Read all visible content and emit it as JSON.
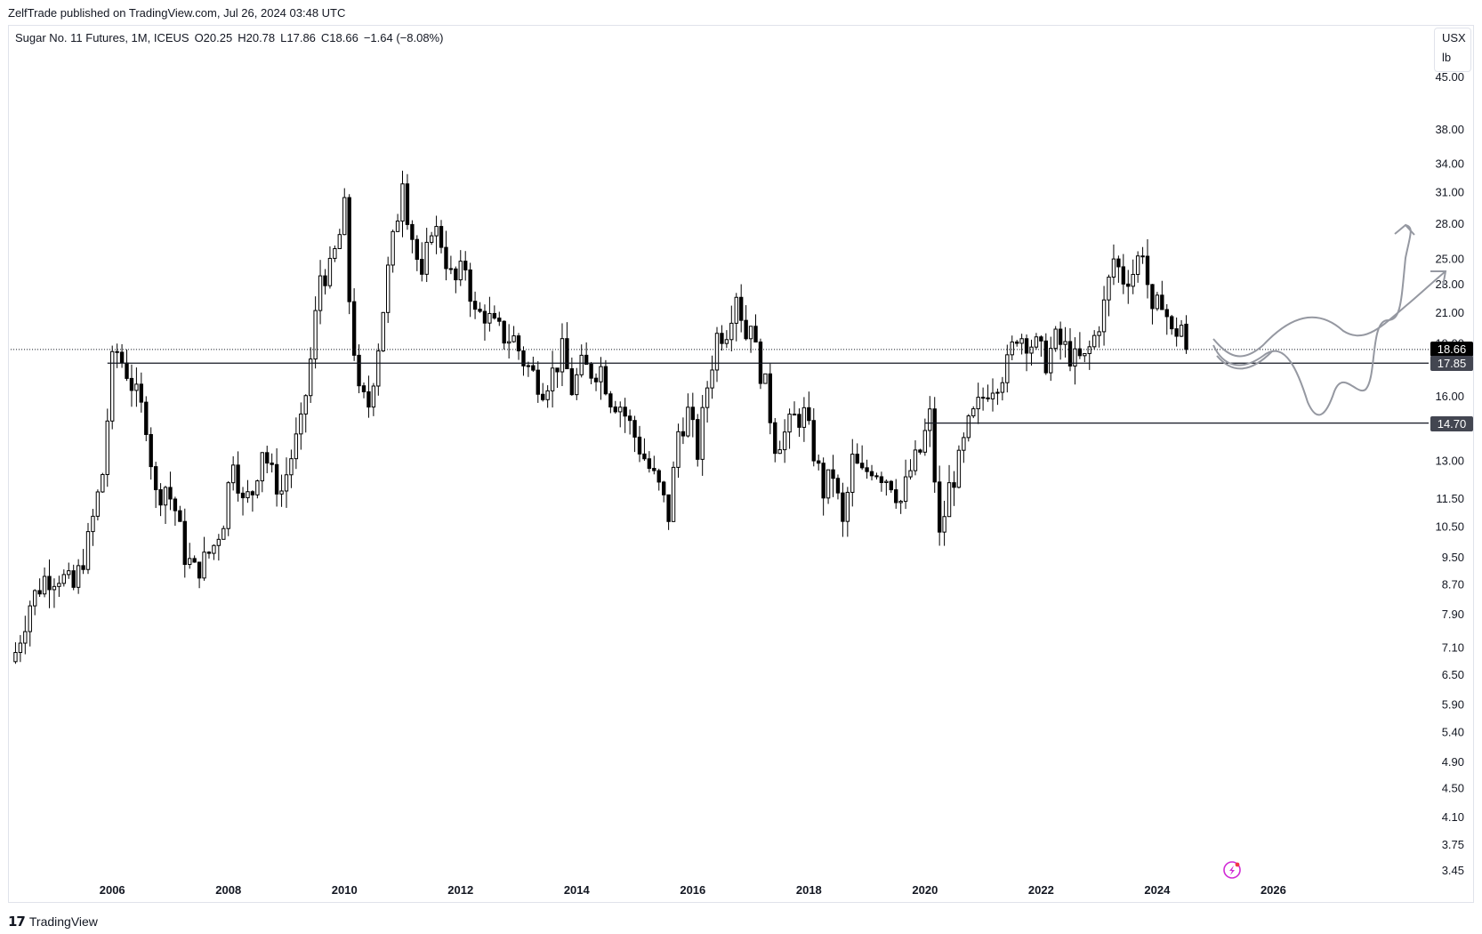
{
  "header": {
    "published": "ZelfTrade published on TradingView.com, Jul 26, 2024 03:48 UTC"
  },
  "legend": {
    "symbol": "Sugar No. 11 Futures, 1M, ICEUS",
    "open": "O20.25",
    "high": "H20.78",
    "low": "L17.86",
    "close": "C18.66",
    "change": "−1.64 (−8.08%)"
  },
  "units": {
    "currency": "USX",
    "measure": "lb"
  },
  "price_tags": {
    "last": "18.66",
    "support_high": "17.85",
    "support_low": "14.70"
  },
  "footer": {
    "brand": "TradingView",
    "logo": "tv-logo-icon"
  },
  "colors": {
    "up": "#ffffff",
    "down": "#000000",
    "line": "#131722",
    "drawing": "#9598a1",
    "last_tag": "#000000",
    "level_tag": "#434651"
  },
  "chart_data": {
    "type": "candlestick",
    "title": "Sugar No. 11 Futures, 1M, ICEUS",
    "y_scale": "log",
    "ylim": [
      3.2,
      44
    ],
    "y_ticks": [
      "45.00",
      "38.00",
      "34.00",
      "31.00",
      "28.00",
      "25.00",
      "23.00",
      "21.00",
      "19.00",
      "16.00",
      "13.00",
      "11.50",
      "10.50",
      "9.50",
      "8.70",
      "7.90",
      "7.10",
      "6.50",
      "5.90",
      "5.40",
      "4.90",
      "4.50",
      "4.10",
      "3.75",
      "3.45"
    ],
    "x_ticks": [
      "2006",
      "2008",
      "2010",
      "2012",
      "2014",
      "2016",
      "2018",
      "2020",
      "2022",
      "2024",
      "2026"
    ],
    "xlim": [
      "2004-04",
      "2028-08"
    ],
    "horizontal_levels": [
      {
        "value": 17.85,
        "from": "2005-12"
      },
      {
        "value": 14.7,
        "from": "2020-01"
      }
    ],
    "last_price": 18.66,
    "series_closes": [
      [
        "2004-05",
        7.0
      ],
      [
        "2004-08",
        8.2
      ],
      [
        "2004-11",
        8.9
      ],
      [
        "2005-02",
        9.0
      ],
      [
        "2005-05",
        8.6
      ],
      [
        "2005-08",
        10.0
      ],
      [
        "2005-11",
        12.5
      ],
      [
        "2006-01",
        17.8
      ],
      [
        "2006-02",
        18.5
      ],
      [
        "2006-04",
        17.4
      ],
      [
        "2006-06",
        16.0
      ],
      [
        "2006-08",
        14.8
      ],
      [
        "2006-10",
        11.6
      ],
      [
        "2006-12",
        12.0
      ],
      [
        "2007-02",
        11.1
      ],
      [
        "2007-04",
        9.6
      ],
      [
        "2007-06",
        9.1
      ],
      [
        "2007-08",
        9.4
      ],
      [
        "2007-10",
        9.9
      ],
      [
        "2007-12",
        10.8
      ],
      [
        "2008-02",
        13.3
      ],
      [
        "2008-04",
        11.3
      ],
      [
        "2008-06",
        11.8
      ],
      [
        "2008-08",
        13.6
      ],
      [
        "2008-10",
        12.4
      ],
      [
        "2008-12",
        11.8
      ],
      [
        "2009-02",
        13.2
      ],
      [
        "2009-04",
        14.5
      ],
      [
        "2009-06",
        18.0
      ],
      [
        "2009-08",
        23.8
      ],
      [
        "2009-10",
        24.0
      ],
      [
        "2009-12",
        27.0
      ],
      [
        "2010-01",
        29.3
      ],
      [
        "2010-02",
        22.0
      ],
      [
        "2010-04",
        16.0
      ],
      [
        "2010-06",
        15.6
      ],
      [
        "2010-08",
        19.0
      ],
      [
        "2010-10",
        24.0
      ],
      [
        "2010-12",
        29.0
      ],
      [
        "2011-01",
        33.0
      ],
      [
        "2011-02",
        29.2
      ],
      [
        "2011-04",
        25.0
      ],
      [
        "2011-05",
        23.0
      ],
      [
        "2011-07",
        28.0
      ],
      [
        "2011-09",
        26.5
      ],
      [
        "2011-11",
        23.6
      ],
      [
        "2011-12",
        23.2
      ],
      [
        "2012-02",
        24.5
      ],
      [
        "2012-04",
        20.8
      ],
      [
        "2012-06",
        21.0
      ],
      [
        "2012-08",
        20.0
      ],
      [
        "2012-10",
        19.5
      ],
      [
        "2012-12",
        19.3
      ],
      [
        "2013-02",
        18.0
      ],
      [
        "2013-04",
        17.2
      ],
      [
        "2013-06",
        16.6
      ],
      [
        "2013-08",
        17.3
      ],
      [
        "2013-10",
        18.5
      ],
      [
        "2013-12",
        16.4
      ],
      [
        "2014-02",
        17.6
      ],
      [
        "2014-04",
        17.4
      ],
      [
        "2014-06",
        17.6
      ],
      [
        "2014-08",
        16.0
      ],
      [
        "2014-10",
        15.6
      ],
      [
        "2014-12",
        14.6
      ],
      [
        "2015-02",
        13.6
      ],
      [
        "2015-04",
        12.7
      ],
      [
        "2015-06",
        11.9
      ],
      [
        "2015-08",
        10.9
      ],
      [
        "2015-10",
        14.3
      ],
      [
        "2015-12",
        15.2
      ],
      [
        "2016-02",
        13.4
      ],
      [
        "2016-04",
        16.6
      ],
      [
        "2016-06",
        19.5
      ],
      [
        "2016-08",
        20.0
      ],
      [
        "2016-10",
        22.6
      ],
      [
        "2016-12",
        19.5
      ],
      [
        "2017-01",
        20.8
      ],
      [
        "2017-02",
        18.5
      ],
      [
        "2017-04",
        16.5
      ],
      [
        "2017-06",
        13.8
      ],
      [
        "2017-08",
        14.2
      ],
      [
        "2017-10",
        14.9
      ],
      [
        "2017-12",
        15.1
      ],
      [
        "2018-02",
        13.4
      ],
      [
        "2018-04",
        11.8
      ],
      [
        "2018-06",
        12.5
      ],
      [
        "2018-08",
        10.5
      ],
      [
        "2018-10",
        13.0
      ],
      [
        "2018-12",
        12.4
      ],
      [
        "2019-02",
        12.8
      ],
      [
        "2019-04",
        12.5
      ],
      [
        "2019-06",
        12.2
      ],
      [
        "2019-08",
        11.4
      ],
      [
        "2019-10",
        12.6
      ],
      [
        "2019-12",
        13.4
      ],
      [
        "2020-02",
        15.0
      ],
      [
        "2020-04",
        10.1
      ],
      [
        "2020-06",
        11.9
      ],
      [
        "2020-08",
        12.9
      ],
      [
        "2020-10",
        14.5
      ],
      [
        "2020-12",
        15.5
      ],
      [
        "2021-02",
        16.5
      ],
      [
        "2021-04",
        17.0
      ],
      [
        "2021-06",
        17.7
      ],
      [
        "2021-08",
        19.7
      ],
      [
        "2021-10",
        19.3
      ],
      [
        "2021-12",
        18.8
      ],
      [
        "2022-02",
        18.0
      ],
      [
        "2022-04",
        19.2
      ],
      [
        "2022-06",
        18.7
      ],
      [
        "2022-08",
        18.0
      ],
      [
        "2022-10",
        18.0
      ],
      [
        "2022-12",
        19.4
      ],
      [
        "2023-02",
        21.5
      ],
      [
        "2023-04",
        25.0
      ],
      [
        "2023-06",
        23.5
      ],
      [
        "2023-08",
        24.0
      ],
      [
        "2023-10",
        26.0
      ],
      [
        "2023-12",
        20.5
      ],
      [
        "2024-02",
        22.2
      ],
      [
        "2024-04",
        19.5
      ],
      [
        "2024-06",
        20.2
      ],
      [
        "2024-07",
        18.66
      ]
    ]
  }
}
